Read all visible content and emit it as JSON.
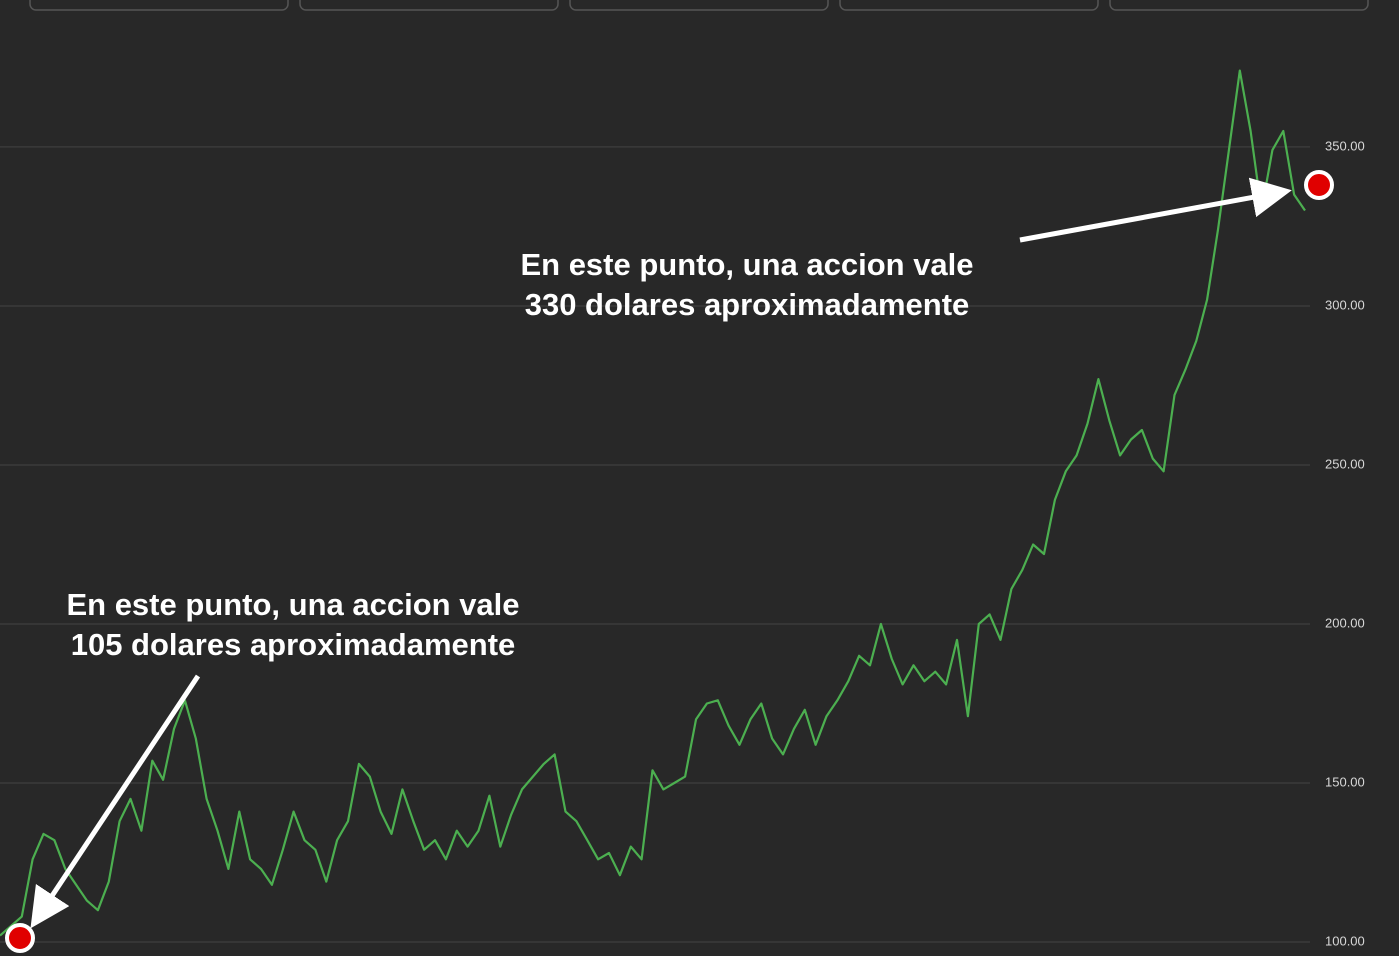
{
  "chart_data": {
    "type": "line",
    "series": [
      {
        "color": "#4caf50",
        "values": [
          102,
          105,
          108,
          126,
          134,
          132,
          123,
          118,
          113,
          110,
          119,
          138,
          145,
          135,
          157,
          151,
          167,
          176,
          164,
          145,
          135,
          123,
          141,
          126,
          123,
          118,
          129,
          141,
          132,
          129,
          119,
          132,
          138,
          156,
          152,
          141,
          134,
          148,
          138,
          129,
          132,
          126,
          135,
          130,
          135,
          146,
          130,
          140,
          148,
          152,
          156,
          159,
          141,
          138,
          132,
          126,
          128,
          121,
          130,
          126,
          154,
          148,
          150,
          152,
          170,
          175,
          176,
          168,
          162,
          170,
          175,
          164,
          159,
          167,
          173,
          162,
          171,
          176,
          182,
          190,
          187,
          200,
          189,
          181,
          187,
          182,
          185,
          181,
          195,
          171,
          200,
          203,
          195,
          211,
          217,
          225,
          222,
          239,
          248,
          253,
          263,
          277,
          264,
          253,
          258,
          261,
          252,
          248,
          272,
          280,
          289,
          302,
          324,
          349,
          374,
          355,
          330,
          349,
          355,
          335,
          330
        ]
      }
    ],
    "ylim": [
      95.6,
      396.2
    ],
    "yticks": [
      {
        "value": 100,
        "label": "100.00"
      },
      {
        "value": 150,
        "label": "150.00"
      },
      {
        "value": 200,
        "label": "200.00"
      },
      {
        "value": 250,
        "label": "250.00"
      },
      {
        "value": 300,
        "label": "300.00"
      },
      {
        "value": 350,
        "label": "350.00"
      }
    ],
    "grid": true,
    "annotations": [
      {
        "lines": [
          "En este punto, una accion vale",
          "105 dolares aproximadamente"
        ]
      },
      {
        "lines": [
          "En este punto, una accion vale",
          "330 dolares aproximadamente"
        ]
      }
    ]
  }
}
